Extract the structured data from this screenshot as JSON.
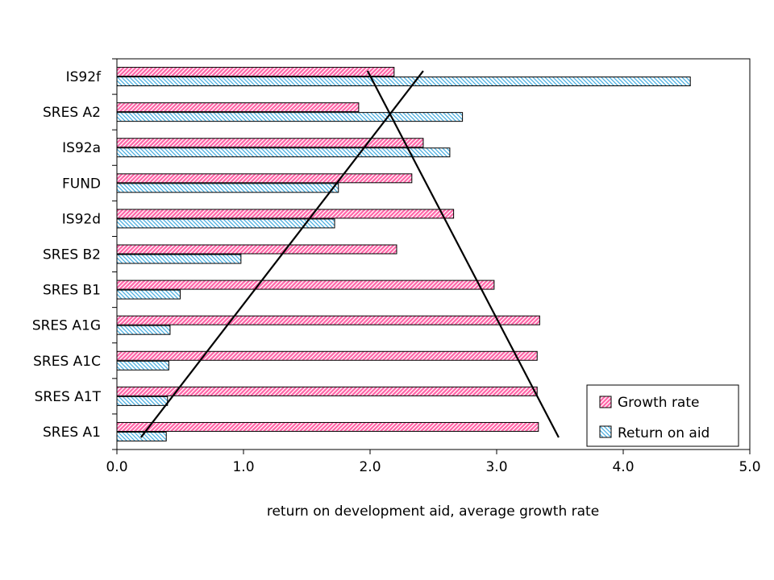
{
  "chart_data": {
    "type": "bar",
    "orientation": "horizontal",
    "categories": [
      "IS92f",
      "SRES A2",
      "IS92a",
      "FUND",
      "IS92d",
      "SRES B2",
      "SRES B1",
      "SRES A1G",
      "SRES A1C",
      "SRES A1T",
      "SRES A1"
    ],
    "series": [
      {
        "name": "Growth rate",
        "color": "#ff66a8",
        "values": [
          2.19,
          1.91,
          2.42,
          2.33,
          2.66,
          2.21,
          2.98,
          3.34,
          3.32,
          3.32,
          3.33
        ]
      },
      {
        "name": "Return on aid",
        "color": "#66ccff",
        "values": [
          4.53,
          2.73,
          2.63,
          1.75,
          1.72,
          0.98,
          0.5,
          0.42,
          0.41,
          0.4,
          0.39
        ]
      }
    ],
    "xlabel": "return on development aid, average growth rate",
    "ylabel": "",
    "xlim": [
      0,
      5
    ],
    "xticks": [
      "0.0",
      "1.0",
      "2.0",
      "3.0",
      "4.0",
      "5.0"
    ],
    "grid": false,
    "legend_position": "bottom-right",
    "trend_lines": [
      {
        "from": [
          0.19,
          "SRES A1"
        ],
        "to": [
          2.42,
          "IS92f"
        ]
      },
      {
        "from": [
          1.98,
          "IS92f"
        ],
        "to": [
          3.49,
          "SRES A1"
        ]
      }
    ]
  }
}
